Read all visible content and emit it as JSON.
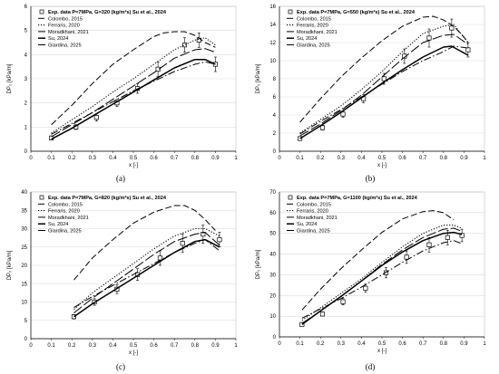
{
  "chart_data": [
    {
      "type": "line",
      "panel_label": "(a)",
      "xlabel": "x [-]",
      "ylabel": "DP₀ [kPa/m]",
      "xlim": [
        0,
        1
      ],
      "ylim": [
        0,
        6
      ],
      "xticks": [
        0,
        0.1,
        0.2,
        0.3,
        0.4,
        0.5,
        0.6,
        0.7,
        0.8,
        0.9,
        1
      ],
      "yticks": [
        0,
        1,
        2,
        3,
        4,
        5,
        6
      ],
      "legend": [
        "Exp. data P=7MPa, G=320 (kg/m²s) Su et al., 2024",
        "Colombo, 2015",
        "Ferraris, 2020",
        "Moradkhani, 2021",
        "Su, 2024",
        "Giardina, 2025"
      ],
      "series": [
        {
          "name": "Exp. data P=7MPa, G=320 (kg/m²s) Su et al., 2024",
          "style": "markers",
          "x": [
            0.1,
            0.22,
            0.32,
            0.42,
            0.52,
            0.62,
            0.75,
            0.82,
            0.9
          ],
          "y": [
            0.55,
            1.0,
            1.4,
            2.0,
            2.6,
            3.4,
            4.4,
            4.6,
            3.6
          ],
          "err": [
            0.08,
            0.1,
            0.15,
            0.15,
            0.2,
            0.3,
            0.3,
            0.3,
            0.3
          ]
        },
        {
          "name": "Colombo, 2015",
          "style": "dash",
          "x": [
            0.1,
            0.2,
            0.3,
            0.4,
            0.5,
            0.6,
            0.65,
            0.7,
            0.75,
            0.8,
            0.85,
            0.9
          ],
          "y": [
            1.1,
            1.9,
            2.8,
            3.6,
            4.2,
            4.75,
            4.9,
            4.95,
            4.95,
            4.8,
            4.5,
            4.3
          ]
        },
        {
          "name": "Ferraris, 2020",
          "style": "dot",
          "x": [
            0.1,
            0.2,
            0.3,
            0.4,
            0.5,
            0.6,
            0.7,
            0.8,
            0.85,
            0.9
          ],
          "y": [
            0.75,
            1.3,
            1.85,
            2.45,
            3.0,
            3.6,
            4.2,
            4.6,
            4.7,
            4.4
          ]
        },
        {
          "name": "Moradkhani, 2021",
          "style": "longdash",
          "x": [
            0.1,
            0.2,
            0.3,
            0.4,
            0.5,
            0.6,
            0.7,
            0.8,
            0.85,
            0.9
          ],
          "y": [
            0.6,
            1.1,
            1.6,
            2.15,
            2.7,
            3.25,
            3.85,
            4.2,
            4.25,
            4.1
          ]
        },
        {
          "name": "Su, 2024",
          "style": "solid",
          "x": [
            0.1,
            0.2,
            0.3,
            0.4,
            0.5,
            0.6,
            0.7,
            0.8,
            0.85,
            0.9
          ],
          "y": [
            0.5,
            0.95,
            1.45,
            1.95,
            2.45,
            2.95,
            3.45,
            3.8,
            3.8,
            3.6
          ]
        },
        {
          "name": "Giardina, 2025",
          "style": "dashdot",
          "x": [
            0.1,
            0.2,
            0.3,
            0.4,
            0.5,
            0.6,
            0.7,
            0.8,
            0.85,
            0.9
          ],
          "y": [
            0.7,
            1.15,
            1.6,
            2.05,
            2.5,
            2.9,
            3.3,
            3.6,
            3.7,
            3.6
          ]
        }
      ]
    },
    {
      "type": "line",
      "panel_label": "(b)",
      "xlabel": "x [-]",
      "ylabel": "DP₀ [kPa/m]",
      "xlim": [
        0,
        1
      ],
      "ylim": [
        0,
        16
      ],
      "xticks": [
        0,
        0.1,
        0.2,
        0.3,
        0.4,
        0.5,
        0.6,
        0.7,
        0.8,
        0.9,
        1
      ],
      "yticks": [
        0,
        2,
        4,
        6,
        8,
        10,
        12,
        14,
        16
      ],
      "legend": [
        "Exp. data P=7MPa, G=550 (kg/m²s) Su et al., 2024",
        "Colombo, 2015",
        "Ferraris, 2020",
        "Moradkhani, 2021",
        "Su, 2024",
        "Giardina, 2025"
      ],
      "series": [
        {
          "name": "Exp. data P=7MPa, G=550 (kg/m²s) Su et al., 2024",
          "style": "markers",
          "x": [
            0.1,
            0.21,
            0.31,
            0.41,
            0.51,
            0.61,
            0.73,
            0.84,
            0.92
          ],
          "y": [
            1.4,
            2.6,
            4.1,
            5.8,
            8.0,
            10.5,
            12.5,
            13.6,
            11.2
          ],
          "err": [
            0.2,
            0.25,
            0.35,
            0.45,
            0.6,
            0.8,
            1.0,
            1.0,
            0.8
          ]
        },
        {
          "name": "Colombo, 2015",
          "style": "dash",
          "x": [
            0.1,
            0.2,
            0.3,
            0.4,
            0.5,
            0.6,
            0.7,
            0.75,
            0.8,
            0.85,
            0.9,
            0.92
          ],
          "y": [
            3.2,
            5.8,
            8.2,
            10.3,
            12.2,
            13.8,
            14.8,
            14.9,
            14.5,
            13.8,
            12.6,
            12.0
          ]
        },
        {
          "name": "Ferraris, 2020",
          "style": "dot",
          "x": [
            0.1,
            0.2,
            0.3,
            0.4,
            0.5,
            0.6,
            0.7,
            0.8,
            0.85,
            0.92
          ],
          "y": [
            2.0,
            3.5,
            5.0,
            6.8,
            8.8,
            11.0,
            13.0,
            13.8,
            14.0,
            12.0
          ]
        },
        {
          "name": "Moradkhani, 2021",
          "style": "longdash",
          "x": [
            0.1,
            0.2,
            0.3,
            0.4,
            0.5,
            0.6,
            0.7,
            0.8,
            0.85,
            0.92
          ],
          "y": [
            1.7,
            3.0,
            4.5,
            6.2,
            8.2,
            10.2,
            12.0,
            12.8,
            12.9,
            11.8
          ]
        },
        {
          "name": "Su, 2024",
          "style": "solid",
          "x": [
            0.1,
            0.2,
            0.3,
            0.4,
            0.5,
            0.6,
            0.7,
            0.8,
            0.84,
            0.92
          ],
          "y": [
            1.4,
            2.8,
            4.3,
            5.9,
            7.5,
            9.0,
            10.4,
            11.5,
            11.6,
            10.6
          ]
        },
        {
          "name": "Giardina, 2025",
          "style": "dashdot",
          "x": [
            0.1,
            0.2,
            0.3,
            0.4,
            0.5,
            0.6,
            0.7,
            0.8,
            0.85,
            0.92
          ],
          "y": [
            1.9,
            3.3,
            4.6,
            6.0,
            7.4,
            8.8,
            10.0,
            11.0,
            11.6,
            11.4
          ]
        }
      ]
    },
    {
      "type": "line",
      "panel_label": "(c)",
      "xlabel": "x [-]",
      "ylabel": "DP₀ [kPa/m]",
      "xlim": [
        0,
        1
      ],
      "ylim": [
        0,
        40
      ],
      "xticks": [
        0,
        0.1,
        0.2,
        0.3,
        0.4,
        0.5,
        0.6,
        0.7,
        0.8,
        0.9,
        1
      ],
      "yticks": [
        0,
        5,
        10,
        15,
        20,
        25,
        30,
        35,
        40
      ],
      "legend": [
        "Exp. data P=7MPa, G=820 (kg/m²s) Su et al., 2024",
        "Colombo, 2015",
        "Ferraris, 2020",
        "Moradkhani, 2021",
        "Su, 2024",
        "Giardina, 2025"
      ],
      "series": [
        {
          "name": "Exp. data P=7MPa, G=820 (kg/m²s) Su et al., 2024",
          "style": "markers",
          "x": [
            0.21,
            0.31,
            0.42,
            0.52,
            0.63,
            0.74,
            0.84,
            0.92
          ],
          "y": [
            6.0,
            10.0,
            13.5,
            17.5,
            22.0,
            26.0,
            28.5,
            27.0
          ],
          "err": [
            0.6,
            0.9,
            1.2,
            1.6,
            2.0,
            2.5,
            2.5,
            2.0
          ]
        },
        {
          "name": "Colombo, 2015",
          "style": "dash",
          "x": [
            0.21,
            0.3,
            0.4,
            0.5,
            0.6,
            0.7,
            0.75,
            0.8,
            0.85,
            0.9
          ],
          "y": [
            16.0,
            22.0,
            27.0,
            31.5,
            34.5,
            36.3,
            36.3,
            35.0,
            32.5,
            29.5
          ]
        },
        {
          "name": "Ferraris, 2020",
          "style": "dot",
          "x": [
            0.21,
            0.3,
            0.4,
            0.5,
            0.6,
            0.7,
            0.8,
            0.85,
            0.92
          ],
          "y": [
            8.0,
            12.5,
            16.5,
            20.5,
            24.5,
            28.0,
            30.0,
            30.0,
            28.0
          ]
        },
        {
          "name": "Moradkhani, 2021",
          "style": "longdash",
          "x": [
            0.21,
            0.3,
            0.4,
            0.5,
            0.6,
            0.7,
            0.8,
            0.85,
            0.92
          ],
          "y": [
            7.0,
            11.0,
            15.0,
            19.0,
            23.0,
            26.5,
            28.5,
            29.0,
            25.5
          ]
        },
        {
          "name": "Su, 2024",
          "style": "solid",
          "x": [
            0.21,
            0.3,
            0.4,
            0.5,
            0.6,
            0.7,
            0.8,
            0.85,
            0.92
          ],
          "y": [
            6.0,
            9.5,
            13.0,
            16.5,
            20.0,
            23.5,
            26.5,
            27.0,
            25.0
          ]
        },
        {
          "name": "Giardina, 2025",
          "style": "dashdot",
          "x": [
            0.21,
            0.3,
            0.4,
            0.5,
            0.6,
            0.7,
            0.8,
            0.85,
            0.92
          ],
          "y": [
            8.5,
            11.5,
            14.5,
            17.5,
            20.5,
            23.5,
            26.0,
            27.0,
            24.0
          ]
        }
      ]
    },
    {
      "type": "line",
      "panel_label": "(d)",
      "xlabel": "x [-]",
      "ylabel": "DP₀ [kPa/m]",
      "xlim": [
        0,
        1
      ],
      "ylim": [
        0,
        70
      ],
      "xticks": [
        0,
        0.1,
        0.2,
        0.3,
        0.4,
        0.5,
        0.6,
        0.7,
        0.8,
        0.9,
        1
      ],
      "yticks": [
        0,
        10,
        20,
        30,
        40,
        50,
        60,
        70
      ],
      "legend": [
        "Exp. data P=7MPa, G=1100 (kg/m²s) Su et al., 2024",
        "Colombo, 2015",
        "Ferraris, 2020",
        "Moradkhani, 2021",
        "Su, 2024",
        "Giardina, 2025"
      ],
      "series": [
        {
          "name": "Exp. data P=7MPa, G=1100 (kg/m²s) Su et al., 2024",
          "style": "markers",
          "x": [
            0.11,
            0.21,
            0.31,
            0.42,
            0.52,
            0.62,
            0.73,
            0.82,
            0.89
          ],
          "y": [
            6.0,
            11.0,
            17.0,
            23.5,
            31.0,
            38.5,
            44.5,
            48.0,
            49.0
          ],
          "err": [
            0.6,
            1.0,
            1.5,
            2.0,
            2.5,
            3.0,
            3.5,
            3.5,
            3.0
          ]
        },
        {
          "name": "Colombo, 2015",
          "style": "dash",
          "x": [
            0.11,
            0.2,
            0.3,
            0.4,
            0.5,
            0.6,
            0.7,
            0.75,
            0.8,
            0.85
          ],
          "y": [
            13.0,
            23.0,
            33.0,
            42.0,
            50.5,
            57.0,
            60.5,
            61.0,
            60.0,
            56.5
          ]
        },
        {
          "name": "Ferraris, 2020",
          "style": "dot",
          "x": [
            0.11,
            0.2,
            0.3,
            0.4,
            0.5,
            0.6,
            0.7,
            0.8,
            0.85,
            0.89
          ],
          "y": [
            8.0,
            14.0,
            21.0,
            28.0,
            36.0,
            43.5,
            50.0,
            54.0,
            54.0,
            52.5
          ]
        },
        {
          "name": "Moradkhani, 2021",
          "style": "longdash",
          "x": [
            0.11,
            0.2,
            0.3,
            0.4,
            0.5,
            0.6,
            0.7,
            0.8,
            0.85,
            0.89
          ],
          "y": [
            6.5,
            12.5,
            19.5,
            27.0,
            35.0,
            42.0,
            48.0,
            52.0,
            52.5,
            51.0
          ]
        },
        {
          "name": "Su, 2024",
          "style": "solid",
          "x": [
            0.11,
            0.2,
            0.3,
            0.4,
            0.5,
            0.6,
            0.7,
            0.8,
            0.85,
            0.89
          ],
          "y": [
            6.0,
            12.5,
            19.5,
            27.0,
            34.5,
            41.0,
            46.5,
            50.0,
            50.5,
            49.5
          ]
        },
        {
          "name": "Giardina, 2025",
          "style": "dashdot",
          "x": [
            0.11,
            0.2,
            0.3,
            0.4,
            0.5,
            0.6,
            0.7,
            0.8,
            0.85,
            0.89
          ],
          "y": [
            9.0,
            13.5,
            18.5,
            24.0,
            30.0,
            36.0,
            41.5,
            45.5,
            46.5,
            45.0
          ]
        }
      ]
    }
  ]
}
